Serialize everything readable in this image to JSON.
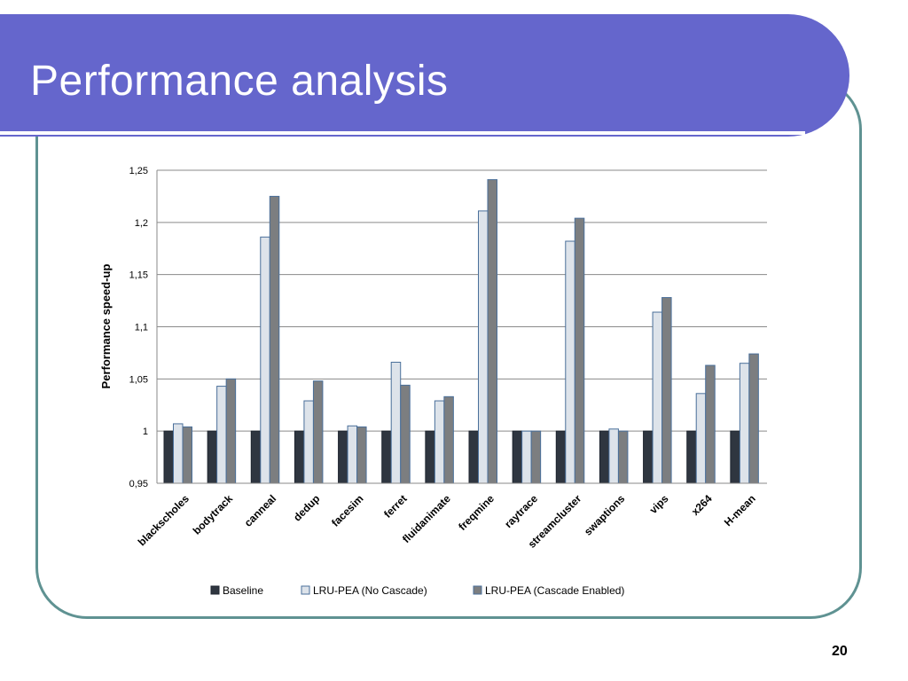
{
  "slide": {
    "title": "Performance analysis",
    "page_number": "20"
  },
  "colors": {
    "title_bar": "#6566cc",
    "frame_border": "#5f9292",
    "baseline": "#2f3640",
    "no_cascade": "#dde3ea",
    "cascade": "#7c7e80",
    "bar_outline": "#4a6f9a"
  },
  "chart_data": {
    "type": "bar",
    "title": "",
    "xlabel": "",
    "ylabel": "Performance speed-up",
    "ylim": [
      0.95,
      1.25
    ],
    "yticks": [
      0.95,
      1,
      1.05,
      1.1,
      1.15,
      1.2,
      1.25
    ],
    "ytick_labels": [
      "0,95",
      "1",
      "1,05",
      "1,1",
      "1,15",
      "1,2",
      "1,25"
    ],
    "grid": true,
    "legend_position": "bottom",
    "categories": [
      "blackscholes",
      "bodytrack",
      "canneal",
      "dedup",
      "facesim",
      "ferret",
      "fluidanimate",
      "freqmine",
      "raytrace",
      "streamcluster",
      "swaptions",
      "vips",
      "x264",
      "H-mean"
    ],
    "series": [
      {
        "name": "Baseline",
        "values": [
          1,
          1,
          1,
          1,
          1,
          1,
          1,
          1,
          1,
          1,
          1,
          1,
          1,
          1
        ]
      },
      {
        "name": "LRU-PEA (No Cascade)",
        "values": [
          1.007,
          1.043,
          1.186,
          1.029,
          1.005,
          1.066,
          1.029,
          1.211,
          1.0,
          1.182,
          1.002,
          1.114,
          1.036,
          1.065
        ]
      },
      {
        "name": "LRU-PEA (Cascade Enabled)",
        "values": [
          1.004,
          1.05,
          1.225,
          1.048,
          1.004,
          1.044,
          1.033,
          1.241,
          1.0,
          1.204,
          1.0,
          1.128,
          1.063,
          1.074
        ]
      }
    ]
  }
}
